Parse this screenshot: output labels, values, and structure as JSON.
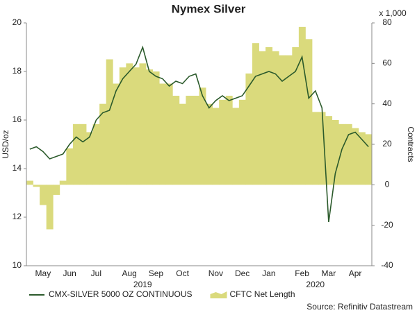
{
  "chart_data": {
    "type": "line-area",
    "title": "Nymex Silver",
    "y_label": "USD/oz",
    "y2_label": "Contracts",
    "y2_unit": "x 1,000",
    "source": "Source: Refinitiv Datastream",
    "categories": [
      null,
      null,
      "May",
      null,
      null,
      null,
      "Jun",
      null,
      null,
      null,
      "Jul",
      null,
      null,
      null,
      null,
      "Aug",
      null,
      null,
      null,
      "Sep",
      null,
      null,
      null,
      "Oct",
      null,
      null,
      null,
      null,
      "Nov",
      null,
      null,
      null,
      "Dec",
      null,
      null,
      null,
      "Jan",
      null,
      null,
      null,
      null,
      "Feb",
      null,
      null,
      null,
      "Mar",
      null,
      null,
      null,
      "Apr",
      null,
      null
    ],
    "year_categories": [
      null,
      null,
      null,
      null,
      null,
      null,
      null,
      null,
      null,
      null,
      null,
      null,
      null,
      null,
      null,
      null,
      null,
      "2019",
      null,
      null,
      null,
      null,
      null,
      null,
      null,
      null,
      null,
      null,
      null,
      null,
      null,
      null,
      null,
      null,
      null,
      null,
      null,
      null,
      null,
      null,
      null,
      null,
      null,
      "2020",
      null,
      null,
      null,
      null,
      null,
      null,
      null,
      null
    ],
    "series": [
      {
        "name": "CMX-SILVER 5000 OZ CONTINUOUS",
        "color": "#2b5a2b",
        "kind": "line",
        "values": [
          14.8,
          14.9,
          14.7,
          14.4,
          14.5,
          14.6,
          15.0,
          15.3,
          15.1,
          15.3,
          16.0,
          16.3,
          16.4,
          17.2,
          17.7,
          18.0,
          18.3,
          19.0,
          18.0,
          17.8,
          17.7,
          17.4,
          17.6,
          17.5,
          17.8,
          17.9,
          17.0,
          16.5,
          16.8,
          17.0,
          16.8,
          16.9,
          17.0,
          17.4,
          17.8,
          17.9,
          18.0,
          17.9,
          17.6,
          17.8,
          18.0,
          18.6,
          16.9,
          17.2,
          16.5,
          11.8,
          13.8,
          14.8,
          15.4,
          15.5,
          15.2,
          14.9
        ]
      },
      {
        "name": "CFTC Net Length",
        "color": "#dada7c",
        "kind": "area",
        "axis": "y2",
        "values": [
          2,
          -1,
          -10,
          -22,
          -5,
          2,
          18,
          30,
          30,
          26,
          30,
          40,
          62,
          50,
          58,
          60,
          58,
          60,
          57,
          56,
          50,
          50,
          44,
          40,
          44,
          44,
          48,
          40,
          38,
          42,
          44,
          38,
          42,
          55,
          70,
          66,
          68,
          66,
          64,
          64,
          68,
          78,
          72,
          36,
          36,
          34,
          32,
          30,
          30,
          28,
          26,
          25
        ]
      }
    ],
    "ylim": [
      10,
      20
    ],
    "yticks": [
      10,
      12,
      14,
      16,
      18,
      20
    ],
    "y2lim": [
      -40,
      80
    ],
    "y2ticks": [
      -40,
      -20,
      0,
      20,
      40,
      60,
      80
    ],
    "grid": false
  }
}
